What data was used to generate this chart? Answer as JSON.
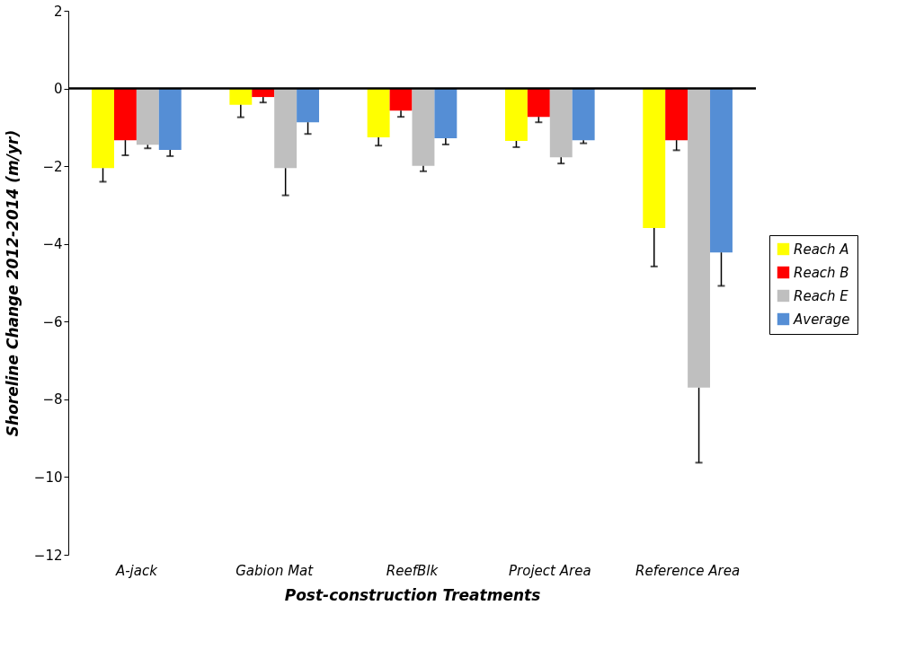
{
  "chart_data": {
    "type": "bar",
    "xlabel": "Post-construction Treatments",
    "ylabel": "Shoreline Change 2012-2014 (m/yr)",
    "categories": [
      "A-jack",
      "Gabion Mat",
      "ReefBlk",
      "Project Area",
      "Reference Area"
    ],
    "series": [
      {
        "name": "Reach A",
        "color": "#ffff00",
        "values": [
          -2.05,
          -0.42,
          -1.26,
          -1.35,
          -3.59
        ],
        "errors": [
          [
            -2.4,
            -2.05
          ],
          [
            -0.74,
            -0.42
          ],
          [
            -1.47,
            -1.26
          ],
          [
            -1.51,
            -1.35
          ],
          [
            -4.58,
            -3.59
          ]
        ]
      },
      {
        "name": "Reach B",
        "color": "#ff0000",
        "values": [
          -1.33,
          -0.22,
          -0.57,
          -0.73,
          -1.33
        ],
        "errors": [
          [
            -1.72,
            -1.33
          ],
          [
            -0.36,
            -0.22
          ],
          [
            -0.73,
            -0.57
          ],
          [
            -0.87,
            -0.73
          ],
          [
            -1.59,
            -1.33
          ]
        ]
      },
      {
        "name": "Reach E",
        "color": "#bfbfbf",
        "values": [
          -1.45,
          -2.05,
          -1.99,
          -1.77,
          -7.7
        ],
        "errors": [
          [
            -1.54,
            -1.45
          ],
          [
            -2.75,
            -2.05
          ],
          [
            -2.13,
            -1.99
          ],
          [
            -1.93,
            -1.77
          ],
          [
            -9.63,
            -7.7
          ]
        ]
      },
      {
        "name": "Average",
        "color": "#558ed5",
        "values": [
          -1.58,
          -0.87,
          -1.28,
          -1.33,
          -4.22
        ],
        "errors": [
          [
            -1.74,
            -1.58
          ],
          [
            -1.17,
            -0.87
          ],
          [
            -1.44,
            -1.28
          ],
          [
            -1.41,
            -1.33
          ],
          [
            -5.08,
            -4.22
          ]
        ]
      }
    ],
    "ylim": [
      -12,
      2
    ],
    "yticks": [
      -12,
      -10,
      -8,
      -6,
      -4,
      -2,
      0,
      2
    ],
    "legend": "right"
  }
}
